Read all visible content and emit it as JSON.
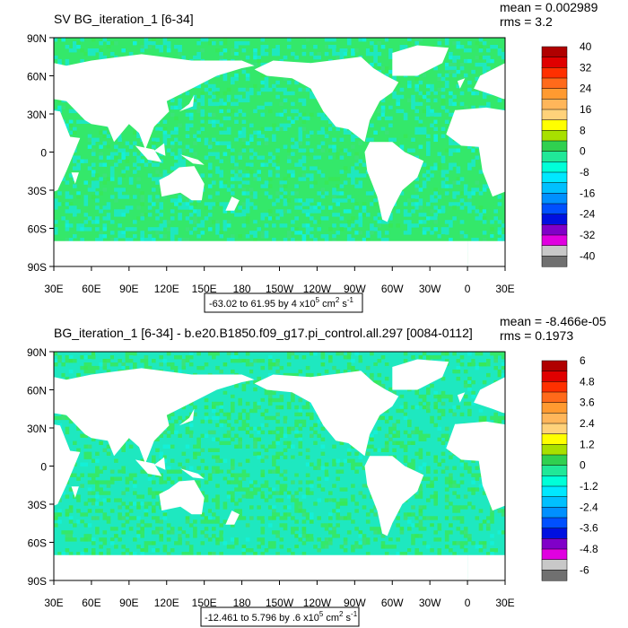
{
  "chart_data": [
    {
      "type": "heatmap",
      "title": "SV BG_iteration_1 [6-34]",
      "stats": [
        "mean = 0.002989",
        "rms = 3.2"
      ],
      "range_label": {
        "text": "-63.02 to 61.95 by 4 x10",
        "sup1": "5",
        "mid": " cm",
        "sup2": "2",
        "s": " s",
        "sup3": "-1"
      },
      "x_ticks": [
        "30E",
        "60E",
        "90E",
        "120E",
        "150E",
        "180",
        "150W",
        "120W",
        "90W",
        "60W",
        "30W",
        "0",
        "30E"
      ],
      "y_ticks": [
        "90N",
        "60N",
        "30N",
        "0",
        "30S",
        "60S",
        "90S"
      ],
      "colorbar_labels": [
        "40",
        "32",
        "24",
        "16",
        "8",
        "0",
        "-8",
        "-16",
        "-24",
        "-32",
        "-40"
      ],
      "colorbar_colors": [
        "#b00000",
        "#e00000",
        "#ff3000",
        "#ff6a1a",
        "#ff9a30",
        "#ffb65a",
        "#ffd27a",
        "#ffff00",
        "#a8e000",
        "#30d050",
        "#20e898",
        "#00ffd8",
        "#00e8ff",
        "#00c0ff",
        "#0090ff",
        "#0050ff",
        "#0010e0",
        "#8000c8",
        "#e000e0",
        "#c8c8c8",
        "#707070"
      ],
      "ylim": [
        -90,
        90
      ],
      "xlim": [
        30,
        390
      ],
      "dominant_color": "#34e86a",
      "secondary_color": "#1ee8c0"
    },
    {
      "type": "heatmap",
      "title": "BG_iteration_1 [6-34] - b.e20.B1850.f09_g17.pi_control.all.297 [0084-0112]",
      "stats": [
        "mean = -8.466e-05",
        "rms = 0.1973"
      ],
      "range_label": {
        "text": "-12.461 to 5.796 by .6 x10",
        "sup1": "5",
        "mid": " cm",
        "sup2": "2",
        "s": " s",
        "sup3": "-1"
      },
      "x_ticks": [
        "30E",
        "60E",
        "90E",
        "120E",
        "150E",
        "180",
        "150W",
        "120W",
        "90W",
        "60W",
        "30W",
        "0",
        "30E"
      ],
      "y_ticks": [
        "90N",
        "60N",
        "30N",
        "0",
        "30S",
        "60S",
        "90S"
      ],
      "colorbar_labels": [
        "6",
        "4.8",
        "3.6",
        "2.4",
        "1.2",
        "0",
        "-1.2",
        "-2.4",
        "-3.6",
        "-4.8",
        "-6"
      ],
      "colorbar_colors": [
        "#b00000",
        "#e00000",
        "#ff3000",
        "#ff6a1a",
        "#ff9a30",
        "#ffb65a",
        "#ffd27a",
        "#ffff00",
        "#a8e000",
        "#30d050",
        "#20e898",
        "#00ffd8",
        "#00e8ff",
        "#00c0ff",
        "#0090ff",
        "#0050ff",
        "#0010e0",
        "#8000c8",
        "#e000e0",
        "#c8c8c8",
        "#707070"
      ],
      "ylim": [
        -90,
        90
      ],
      "xlim": [
        30,
        390
      ],
      "dominant_color": "#1ee8c0",
      "secondary_color": "#34e86a"
    }
  ]
}
